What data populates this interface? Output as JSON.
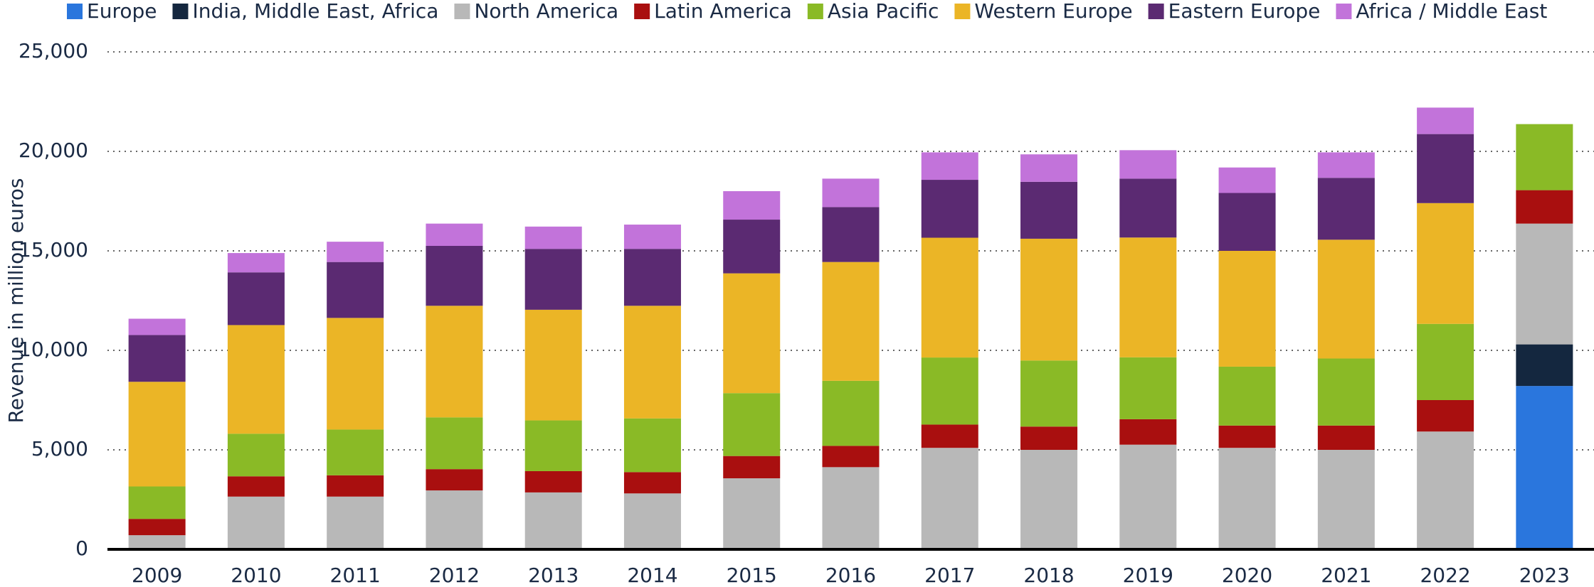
{
  "chart_data": {
    "type": "stacked_bar",
    "y_axis_label": "Revenue in million euros",
    "categories": [
      "2009",
      "2010",
      "2011",
      "2012",
      "2013",
      "2014",
      "2015",
      "2016",
      "2017",
      "2018",
      "2019",
      "2020",
      "2021",
      "2022",
      "2023"
    ],
    "series": [
      {
        "name": "Europe",
        "color": "#2a76dd",
        "values": [
          null,
          null,
          null,
          null,
          null,
          null,
          null,
          null,
          null,
          null,
          null,
          null,
          null,
          null,
          8210
        ]
      },
      {
        "name": "India, Middle East, Africa",
        "color": "#14273f",
        "values": [
          null,
          null,
          null,
          null,
          null,
          null,
          null,
          null,
          null,
          null,
          null,
          null,
          null,
          null,
          2090
        ]
      },
      {
        "name": "North America",
        "color": "#b8b8b8",
        "values": [
          710,
          2650,
          2650,
          2960,
          2860,
          2810,
          3570,
          4130,
          5100,
          5000,
          5260,
          5100,
          5000,
          5920,
          6070
        ]
      },
      {
        "name": "Latin America",
        "color": "#a90f0f",
        "values": [
          820,
          1020,
          1070,
          1070,
          1070,
          1070,
          1120,
          1070,
          1170,
          1170,
          1280,
          1120,
          1220,
          1580,
          1680
        ]
      },
      {
        "name": "Asia Pacific",
        "color": "#8aba26",
        "values": [
          1630,
          2140,
          2300,
          2600,
          2550,
          2700,
          3160,
          3270,
          3370,
          3320,
          3110,
          2960,
          3370,
          3830,
          3320
        ]
      },
      {
        "name": "Western Europe",
        "color": "#ebb526",
        "values": [
          5260,
          5460,
          5610,
          5610,
          5560,
          5660,
          6020,
          5970,
          6020,
          6120,
          6020,
          5820,
          5970,
          6070,
          null
        ]
      },
      {
        "name": "Eastern Europe",
        "color": "#5b2a72",
        "values": [
          2350,
          2650,
          2810,
          3010,
          3060,
          2860,
          2700,
          2760,
          2910,
          2860,
          2960,
          2910,
          3110,
          3470,
          null
        ]
      },
      {
        "name": "Africa / Middle East",
        "color": "#c273da",
        "values": [
          820,
          970,
          1020,
          1120,
          1120,
          1220,
          1430,
          1430,
          1380,
          1380,
          1430,
          1280,
          1280,
          1330,
          null
        ]
      }
    ],
    "ylim": [
      0,
      25000
    ],
    "yticks": [
      0,
      {
        "value": 5000,
        "label": "5,000"
      },
      {
        "value": 10000,
        "label": "10,000"
      },
      {
        "value": 15000,
        "label": "15,000"
      },
      {
        "value": 20000,
        "label": "20,000"
      },
      {
        "value": 25000,
        "label": "25,000"
      }
    ],
    "grid": true,
    "legend": "top"
  }
}
